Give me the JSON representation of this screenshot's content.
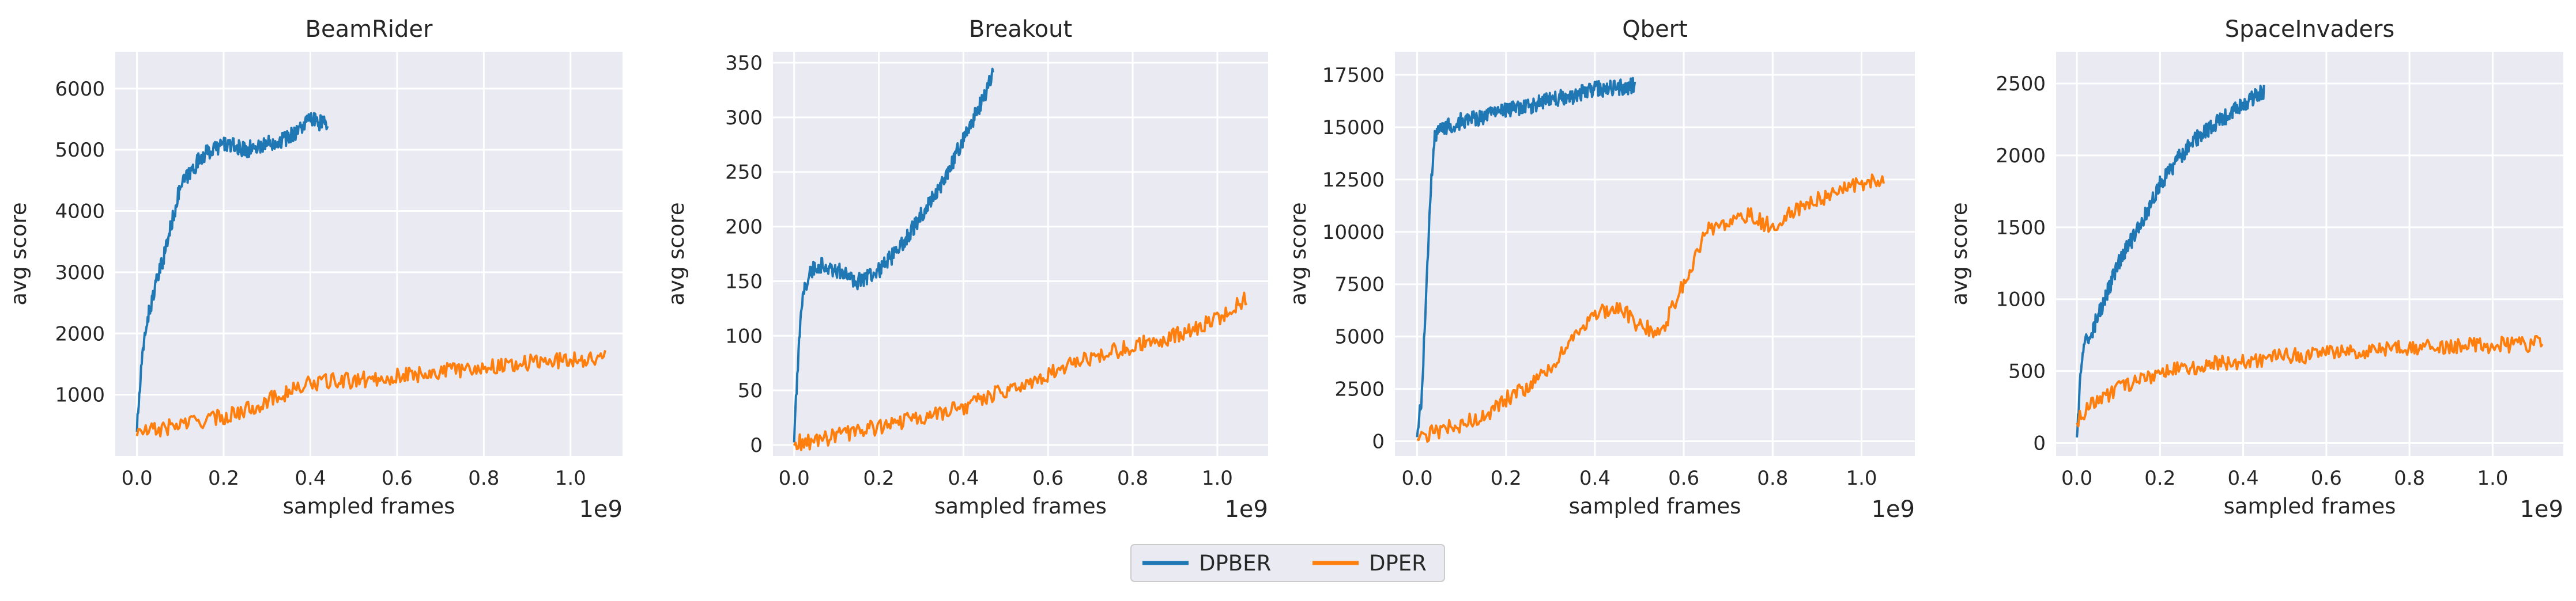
{
  "chart_data": [
    {
      "type": "line",
      "title": "BeamRider",
      "xlabel": "sampled frames",
      "ylabel": "avg score",
      "x_multiplier_label": "1e9",
      "xlim": [
        -0.05,
        1.12
      ],
      "ylim": [
        0,
        6600
      ],
      "xticks": [
        0.0,
        0.2,
        0.4,
        0.6,
        0.8,
        1.0
      ],
      "xtick_labels": [
        "0.0",
        "0.2",
        "0.4",
        "0.6",
        "0.8",
        "1.0"
      ],
      "yticks": [
        1000,
        2000,
        3000,
        4000,
        5000,
        6000
      ],
      "ytick_labels": [
        "1000",
        "2000",
        "3000",
        "4000",
        "5000",
        "6000"
      ],
      "grid": true,
      "series": [
        {
          "name": "DPBER",
          "color": "#1f77b4",
          "x": [
            0.0,
            0.01,
            0.02,
            0.04,
            0.06,
            0.08,
            0.1,
            0.12,
            0.15,
            0.2,
            0.25,
            0.3,
            0.35,
            0.4,
            0.44
          ],
          "y": [
            450,
            1400,
            2100,
            2700,
            3200,
            3800,
            4400,
            4600,
            4900,
            5100,
            5000,
            5100,
            5200,
            5500,
            5400
          ]
        },
        {
          "name": "DPER",
          "color": "#ff7f0e",
          "x": [
            0.0,
            0.05,
            0.1,
            0.15,
            0.2,
            0.25,
            0.3,
            0.35,
            0.4,
            0.45,
            0.5,
            0.6,
            0.7,
            0.8,
            0.9,
            1.0,
            1.08
          ],
          "y": [
            380,
            430,
            520,
            580,
            640,
            750,
            900,
            1050,
            1180,
            1220,
            1230,
            1300,
            1380,
            1450,
            1520,
            1580,
            1600
          ]
        }
      ]
    },
    {
      "type": "line",
      "title": "Breakout",
      "xlabel": "sampled frames",
      "ylabel": "avg score",
      "x_multiplier_label": "1e9",
      "xlim": [
        -0.05,
        1.12
      ],
      "ylim": [
        -10,
        360
      ],
      "xticks": [
        0.0,
        0.2,
        0.4,
        0.6,
        0.8,
        1.0
      ],
      "xtick_labels": [
        "0.0",
        "0.2",
        "0.4",
        "0.6",
        "0.8",
        "1.0"
      ],
      "yticks": [
        0,
        50,
        100,
        150,
        200,
        250,
        300,
        350
      ],
      "ytick_labels": [
        "0",
        "50",
        "100",
        "150",
        "200",
        "250",
        "300",
        "350"
      ],
      "grid": true,
      "series": [
        {
          "name": "DPBER",
          "color": "#1f77b4",
          "x": [
            0.0,
            0.01,
            0.02,
            0.04,
            0.06,
            0.1,
            0.15,
            0.2,
            0.25,
            0.3,
            0.35,
            0.4,
            0.45,
            0.47
          ],
          "y": [
            5,
            80,
            140,
            160,
            165,
            160,
            150,
            160,
            180,
            210,
            240,
            280,
            320,
            340
          ]
        },
        {
          "name": "DPER",
          "color": "#ff7f0e",
          "x": [
            0.0,
            0.05,
            0.1,
            0.15,
            0.2,
            0.3,
            0.4,
            0.5,
            0.6,
            0.7,
            0.8,
            0.9,
            1.0,
            1.07
          ],
          "y": [
            2,
            3,
            8,
            12,
            17,
            25,
            35,
            50,
            65,
            80,
            90,
            100,
            115,
            135
          ]
        }
      ]
    },
    {
      "type": "line",
      "title": "Qbert",
      "xlabel": "sampled frames",
      "ylabel": "avg score",
      "x_multiplier_label": "1e9",
      "xlim": [
        -0.05,
        1.12
      ],
      "ylim": [
        -700,
        18600
      ],
      "xticks": [
        0.0,
        0.2,
        0.4,
        0.6,
        0.8,
        1.0
      ],
      "xtick_labels": [
        "0.0",
        "0.2",
        "0.4",
        "0.6",
        "0.8",
        "1.0"
      ],
      "yticks": [
        0,
        2500,
        5000,
        7500,
        10000,
        12500,
        15000,
        17500
      ],
      "ytick_labels": [
        "0",
        "2500",
        "5000",
        "7500",
        "10000",
        "12500",
        "15000",
        "17500"
      ],
      "grid": true,
      "series": [
        {
          "name": "DPBER",
          "color": "#1f77b4",
          "x": [
            0.0,
            0.01,
            0.02,
            0.03,
            0.04,
            0.06,
            0.1,
            0.15,
            0.2,
            0.25,
            0.3,
            0.35,
            0.4,
            0.45,
            0.49
          ],
          "y": [
            300,
            2000,
            7000,
            12000,
            14500,
            15000,
            15300,
            15500,
            15800,
            16000,
            16300,
            16500,
            16800,
            16900,
            17000
          ]
        },
        {
          "name": "DPER",
          "color": "#ff7f0e",
          "x": [
            0.0,
            0.05,
            0.1,
            0.15,
            0.2,
            0.25,
            0.3,
            0.35,
            0.4,
            0.45,
            0.5,
            0.55,
            0.6,
            0.65,
            0.7,
            0.75,
            0.8,
            0.85,
            0.9,
            0.95,
            1.0,
            1.05
          ],
          "y": [
            200,
            500,
            800,
            1200,
            2000,
            2600,
            3500,
            4800,
            6000,
            6500,
            5500,
            5200,
            7500,
            10000,
            10500,
            10800,
            10200,
            11000,
            11500,
            12000,
            12300,
            12500
          ]
        }
      ]
    },
    {
      "type": "line",
      "title": "SpaceInvaders",
      "xlabel": "sampled frames",
      "ylabel": "avg score",
      "x_multiplier_label": "1e9",
      "xlim": [
        -0.05,
        1.17
      ],
      "ylim": [
        -90,
        2720
      ],
      "xticks": [
        0.0,
        0.2,
        0.4,
        0.6,
        0.8,
        1.0
      ],
      "xtick_labels": [
        "0.0",
        "0.2",
        "0.4",
        "0.6",
        "0.8",
        "1.0"
      ],
      "yticks": [
        0,
        500,
        1000,
        1500,
        2000,
        2500
      ],
      "ytick_labels": [
        "0",
        "500",
        "1000",
        "1500",
        "2000",
        "2500"
      ],
      "grid": true,
      "series": [
        {
          "name": "DPBER",
          "color": "#1f77b4",
          "x": [
            0.0,
            0.01,
            0.02,
            0.04,
            0.06,
            0.08,
            0.1,
            0.15,
            0.2,
            0.25,
            0.3,
            0.35,
            0.4,
            0.45
          ],
          "y": [
            50,
            500,
            700,
            800,
            950,
            1100,
            1250,
            1500,
            1800,
            2000,
            2150,
            2250,
            2350,
            2450
          ]
        },
        {
          "name": "DPER",
          "color": "#ff7f0e",
          "x": [
            0.0,
            0.02,
            0.05,
            0.1,
            0.15,
            0.2,
            0.3,
            0.4,
            0.5,
            0.6,
            0.7,
            0.8,
            0.9,
            1.0,
            1.1,
            1.12
          ],
          "y": [
            150,
            220,
            300,
            380,
            440,
            480,
            540,
            570,
            600,
            620,
            640,
            660,
            670,
            680,
            690,
            700
          ]
        }
      ]
    }
  ],
  "legend": {
    "placement": "bottom-center",
    "entries": [
      {
        "label": "DPBER",
        "color": "#1f77b4"
      },
      {
        "label": "DPER",
        "color": "#ff7f0e"
      }
    ]
  },
  "style": {
    "plot_background": "#eaeaf2",
    "grid_color": "#ffffff",
    "text_color": "#262626"
  }
}
